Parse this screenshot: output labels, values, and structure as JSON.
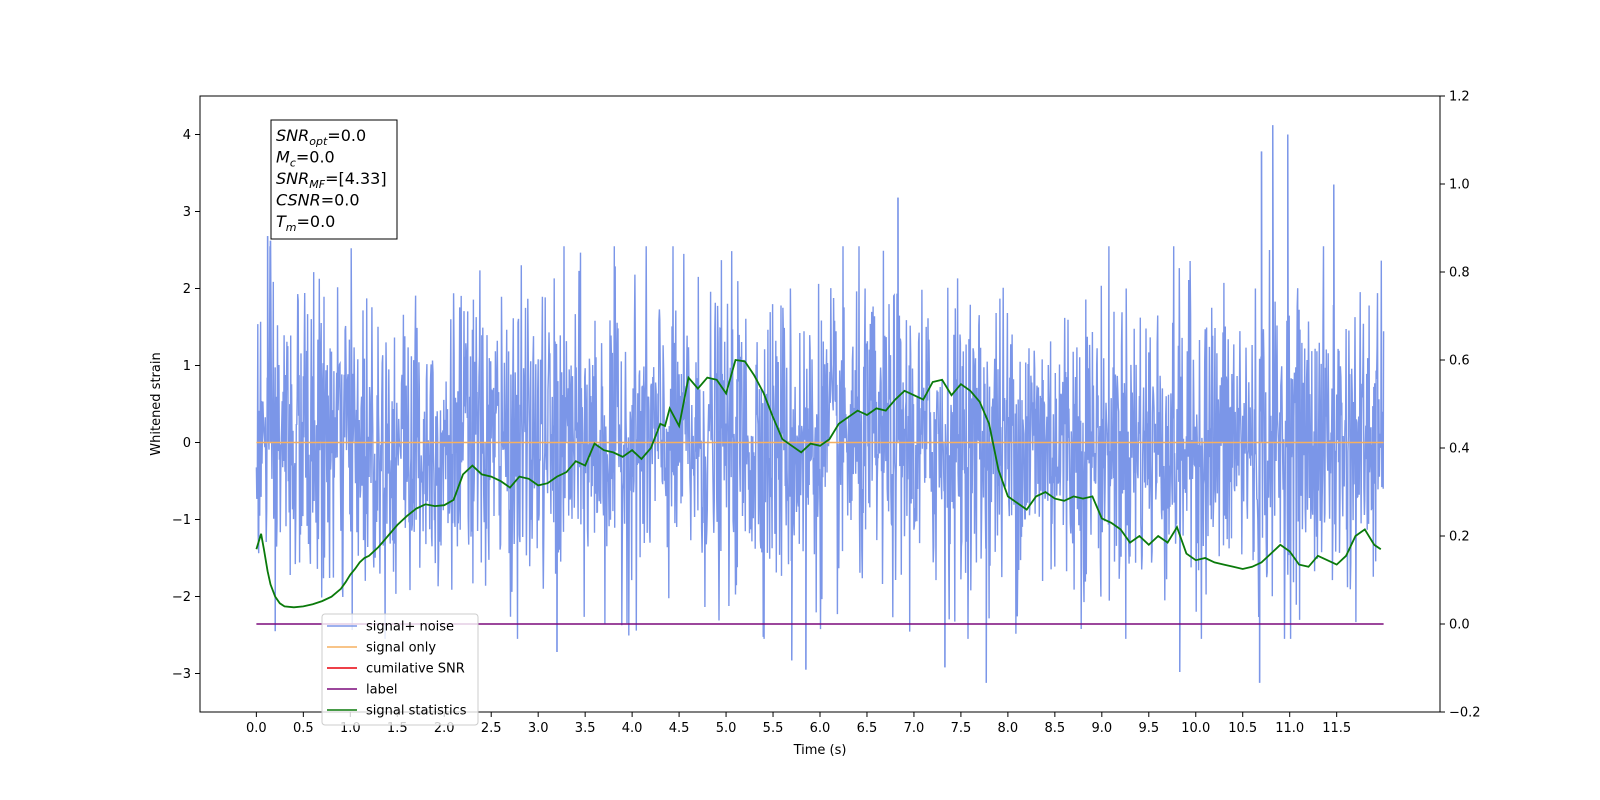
{
  "chart_data": {
    "type": "line",
    "xlabel": "Time (s)",
    "ylabel": "Whitened strain",
    "xlim": [
      -0.6,
      12.6
    ],
    "ylim_left": [
      -3.5,
      4.5
    ],
    "ylim_right": [
      -0.2,
      1.2
    ],
    "x_ticks": [
      0.0,
      0.5,
      1.0,
      1.5,
      2.0,
      2.5,
      3.0,
      3.5,
      4.0,
      4.5,
      5.0,
      5.5,
      6.0,
      6.5,
      7.0,
      7.5,
      8.0,
      8.5,
      9.0,
      9.5,
      10.0,
      10.5,
      11.0,
      11.5
    ],
    "x_tick_labels": [
      "0.0",
      "0.5",
      "1.0",
      "1.5",
      "2.0",
      "2.5",
      "3.0",
      "3.5",
      "4.0",
      "4.5",
      "5.0",
      "5.5",
      "6.0",
      "6.5",
      "7.0",
      "7.5",
      "8.0",
      "8.5",
      "9.0",
      "9.5",
      "10.0",
      "10.5",
      "11.0",
      "11.5"
    ],
    "y_left_ticks": [
      -3,
      -2,
      -1,
      0,
      1,
      2,
      3,
      4
    ],
    "y_left_tick_labels": [
      "−3",
      "−2",
      "−1",
      "0",
      "1",
      "2",
      "3",
      "4"
    ],
    "y_right_ticks": [
      -0.2,
      0.0,
      0.2,
      0.4,
      0.6,
      0.8,
      1.0,
      1.2
    ],
    "y_right_tick_labels": [
      "−0.2",
      "0.0",
      "0.2",
      "0.4",
      "0.6",
      "0.8",
      "1.0",
      "1.2"
    ],
    "grid": false,
    "legend_position": "lower-left",
    "series": [
      {
        "name": "signal+ noise",
        "axis": "left",
        "color": "#7b96e8",
        "style": "dense-noise",
        "x_range": [
          0.0,
          12.0
        ],
        "approx_band": [
          -1.9,
          1.9
        ],
        "peaks": [
          {
            "x": 10.82,
            "y": 4.12
          },
          {
            "x": 10.98,
            "y": 4.0
          },
          {
            "x": 10.7,
            "y": 3.78
          },
          {
            "x": 6.83,
            "y": 3.18
          },
          {
            "x": 11.47,
            "y": 3.35
          },
          {
            "x": 0.12,
            "y": 2.68
          },
          {
            "x": 0.15,
            "y": 2.62
          },
          {
            "x": 0.2,
            "y": -2.45
          },
          {
            "x": 3.2,
            "y": -2.72
          },
          {
            "x": 7.77,
            "y": -3.12
          },
          {
            "x": 5.85,
            "y": -2.95
          },
          {
            "x": 10.68,
            "y": -3.12
          },
          {
            "x": 9.83,
            "y": -2.98
          },
          {
            "x": 5.7,
            "y": -2.83
          },
          {
            "x": 7.33,
            "y": -2.92
          }
        ]
      },
      {
        "name": "signal only",
        "axis": "left",
        "color": "#f5b060",
        "x": [
          0.0,
          12.0
        ],
        "y": [
          0.0,
          0.0
        ]
      },
      {
        "name": "cumilative SNR",
        "axis": "right",
        "color": "#e8000b",
        "x": [],
        "y": []
      },
      {
        "name": "label",
        "axis": "right",
        "color": "#7b0a7b",
        "x": [
          0.0,
          12.0
        ],
        "y": [
          0.0,
          0.0
        ]
      },
      {
        "name": "signal statistics",
        "axis": "right",
        "color": "#0a7a0a",
        "x": [
          0.0,
          0.05,
          0.08,
          0.12,
          0.15,
          0.2,
          0.25,
          0.3,
          0.4,
          0.5,
          0.6,
          0.7,
          0.8,
          0.9,
          0.95,
          1.0,
          1.05,
          1.1,
          1.15,
          1.2,
          1.3,
          1.4,
          1.5,
          1.6,
          1.7,
          1.8,
          1.9,
          2.0,
          2.1,
          2.2,
          2.3,
          2.4,
          2.5,
          2.6,
          2.7,
          2.8,
          2.9,
          3.0,
          3.1,
          3.2,
          3.3,
          3.4,
          3.5,
          3.6,
          3.7,
          3.8,
          3.9,
          4.0,
          4.1,
          4.2,
          4.3,
          4.35,
          4.4,
          4.5,
          4.6,
          4.7,
          4.8,
          4.9,
          5.0,
          5.1,
          5.2,
          5.3,
          5.4,
          5.5,
          5.6,
          5.7,
          5.8,
          5.9,
          6.0,
          6.1,
          6.2,
          6.3,
          6.4,
          6.5,
          6.6,
          6.7,
          6.8,
          6.9,
          7.0,
          7.1,
          7.2,
          7.3,
          7.4,
          7.5,
          7.6,
          7.7,
          7.8,
          7.9,
          8.0,
          8.1,
          8.2,
          8.3,
          8.4,
          8.5,
          8.6,
          8.7,
          8.8,
          8.9,
          9.0,
          9.1,
          9.2,
          9.3,
          9.4,
          9.5,
          9.6,
          9.7,
          9.8,
          9.9,
          10.0,
          10.1,
          10.2,
          10.3,
          10.4,
          10.5,
          10.6,
          10.7,
          10.8,
          10.9,
          11.0,
          11.1,
          11.2,
          11.3,
          11.4,
          11.5,
          11.6,
          11.7,
          11.8,
          11.9,
          11.97
        ],
        "y": [
          0.17,
          0.205,
          0.17,
          0.12,
          0.09,
          0.062,
          0.047,
          0.04,
          0.038,
          0.04,
          0.045,
          0.052,
          0.062,
          0.08,
          0.095,
          0.112,
          0.125,
          0.14,
          0.15,
          0.155,
          0.175,
          0.2,
          0.225,
          0.245,
          0.262,
          0.272,
          0.268,
          0.27,
          0.282,
          0.34,
          0.36,
          0.34,
          0.335,
          0.325,
          0.31,
          0.335,
          0.33,
          0.315,
          0.32,
          0.335,
          0.345,
          0.37,
          0.36,
          0.41,
          0.395,
          0.39,
          0.38,
          0.395,
          0.375,
          0.4,
          0.455,
          0.45,
          0.49,
          0.45,
          0.56,
          0.535,
          0.56,
          0.555,
          0.524,
          0.6,
          0.597,
          0.565,
          0.525,
          0.47,
          0.42,
          0.405,
          0.39,
          0.41,
          0.405,
          0.42,
          0.455,
          0.47,
          0.485,
          0.475,
          0.49,
          0.485,
          0.51,
          0.53,
          0.52,
          0.51,
          0.55,
          0.555,
          0.52,
          0.545,
          0.53,
          0.505,
          0.455,
          0.35,
          0.29,
          0.275,
          0.26,
          0.29,
          0.3,
          0.285,
          0.28,
          0.29,
          0.285,
          0.29,
          0.24,
          0.23,
          0.215,
          0.185,
          0.2,
          0.18,
          0.2,
          0.185,
          0.22,
          0.16,
          0.145,
          0.15,
          0.14,
          0.135,
          0.13,
          0.125,
          0.13,
          0.14,
          0.16,
          0.18,
          0.165,
          0.135,
          0.13,
          0.155,
          0.145,
          0.135,
          0.155,
          0.2,
          0.215,
          0.18,
          0.17
        ]
      }
    ]
  },
  "annotation": {
    "lines": [
      {
        "base": "SNR",
        "sub": "opt",
        "rest": "=0.0"
      },
      {
        "base": "M",
        "sub": "c",
        "rest": "=0.0"
      },
      {
        "base": "SNR",
        "sub": "MF",
        "rest": "=[4.33]"
      },
      {
        "base": "CSNR",
        "sub": "",
        "rest": "=0.0"
      },
      {
        "base": "T",
        "sub": "m",
        "rest": "=0.0"
      }
    ]
  },
  "legend": {
    "entries": [
      {
        "label": "signal+ noise",
        "color": "#7b96e8"
      },
      {
        "label": "signal only",
        "color": "#f5b060"
      },
      {
        "label": "cumilative SNR",
        "color": "#e8000b"
      },
      {
        "label": "label",
        "color": "#7b0a7b"
      },
      {
        "label": "signal statistics",
        "color": "#0a7a0a"
      }
    ]
  }
}
